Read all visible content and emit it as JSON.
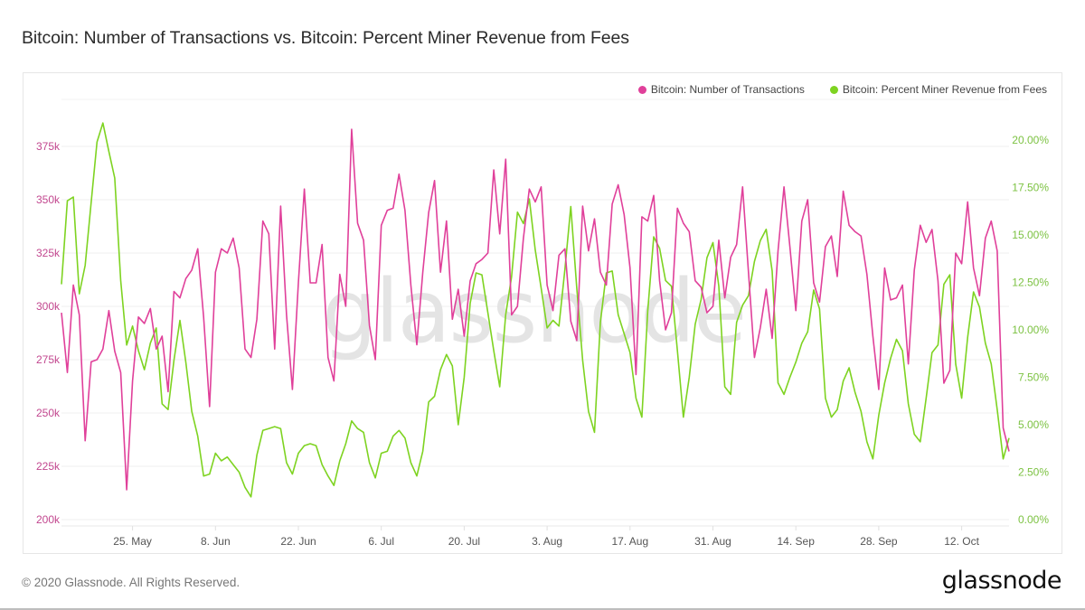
{
  "header": {
    "title": "Bitcoin: Number of Transactions vs. Bitcoin: Percent Miner Revenue from Fees"
  },
  "footer": {
    "copyright": "© 2020 Glassnode. All Rights Reserved.",
    "logo": "glassnode"
  },
  "watermark": "glassnode",
  "chart_data": {
    "type": "line",
    "title": "Bitcoin: Number of Transactions vs. Bitcoin: Percent Miner Revenue from Fees",
    "xlabel": "",
    "legend_position": "top-right",
    "grid": true,
    "x_start": "2020-05-13",
    "x_ticks": [
      "25. May",
      "8. Jun",
      "22. Jun",
      "6. Jul",
      "20. Jul",
      "3. Aug",
      "17. Aug",
      "31. Aug",
      "14. Sep",
      "28. Sep",
      "12. Oct"
    ],
    "x_tick_days": [
      12,
      26,
      40,
      54,
      68,
      82,
      96,
      110,
      124,
      138,
      152
    ],
    "y_left": {
      "label": "Number of Transactions",
      "range": [
        200000,
        390000
      ],
      "ticks": [
        200000,
        225000,
        250000,
        275000,
        300000,
        325000,
        350000,
        375000
      ],
      "tick_labels": [
        "200k",
        "225k",
        "250k",
        "275k",
        "300k",
        "325k",
        "350k",
        "375k"
      ],
      "color": "#c2478f"
    },
    "y_right": {
      "label": "Percent Miner Revenue from Fees",
      "range": [
        0,
        21
      ],
      "ticks": [
        0,
        2.5,
        5,
        7.5,
        10,
        12.5,
        15,
        17.5,
        20
      ],
      "tick_labels": [
        "0.00%",
        "2.50%",
        "5.00%",
        "7.50%",
        "10.00%",
        "12.50%",
        "15.00%",
        "17.50%",
        "20.00%"
      ],
      "color": "#7cc242"
    },
    "series": [
      {
        "name": "Bitcoin: Number of Transactions",
        "axis": "left",
        "color": "#e0409a",
        "values": [
          297000,
          269000,
          310000,
          296000,
          237000,
          274000,
          275000,
          280000,
          298000,
          279000,
          269000,
          214000,
          265000,
          295000,
          292000,
          299000,
          280000,
          286000,
          260000,
          307000,
          304000,
          313000,
          317000,
          327000,
          295000,
          253000,
          316000,
          327000,
          325000,
          332000,
          318000,
          280000,
          276000,
          294000,
          340000,
          334000,
          280000,
          347000,
          296000,
          261000,
          311000,
          355000,
          311000,
          311000,
          329000,
          276000,
          265000,
          315000,
          300000,
          383000,
          339000,
          331000,
          291000,
          275000,
          338000,
          345000,
          346000,
          362000,
          345000,
          310000,
          282000,
          316000,
          344000,
          359000,
          316000,
          340000,
          294000,
          308000,
          286000,
          312000,
          320000,
          322000,
          325000,
          364000,
          334000,
          369000,
          296000,
          300000,
          332000,
          355000,
          349000,
          356000,
          310000,
          298000,
          324000,
          327000,
          293000,
          284000,
          347000,
          326000,
          341000,
          316000,
          310000,
          348000,
          357000,
          343000,
          318000,
          268000,
          342000,
          340000,
          352000,
          312000,
          289000,
          297000,
          346000,
          339000,
          335000,
          312000,
          309000,
          297000,
          300000,
          331000,
          304000,
          323000,
          329000,
          356000,
          316000,
          276000,
          290000,
          308000,
          285000,
          326000,
          356000,
          328000,
          298000,
          340000,
          350000,
          311000,
          302000,
          328000,
          333000,
          314000,
          354000,
          338000,
          335000,
          333000,
          315000,
          286000,
          261000,
          318000,
          303000,
          304000,
          310000,
          273000,
          317000,
          338000,
          330000,
          336000,
          312000,
          264000,
          270000,
          325000,
          320000,
          349000,
          318000,
          305000,
          332000,
          340000,
          326000,
          243000,
          232000
        ]
      },
      {
        "name": "Bitcoin: Percent Miner Revenue from Fees",
        "axis": "right",
        "color": "#7ed321",
        "values": [
          12.4,
          16.8,
          17.0,
          11.9,
          13.4,
          16.7,
          19.9,
          20.9,
          19.4,
          18.0,
          12.6,
          9.2,
          10.2,
          8.9,
          7.9,
          9.3,
          10.1,
          6.1,
          5.8,
          8.4,
          10.5,
          8.3,
          5.7,
          4.4,
          2.3,
          2.4,
          3.5,
          3.1,
          3.3,
          2.9,
          2.5,
          1.7,
          1.2,
          3.4,
          4.7,
          4.8,
          4.9,
          4.8,
          3.0,
          2.4,
          3.5,
          3.9,
          4.0,
          3.9,
          2.9,
          2.3,
          1.8,
          3.1,
          4.0,
          5.2,
          4.8,
          4.6,
          3.0,
          2.2,
          3.5,
          3.6,
          4.4,
          4.7,
          4.3,
          3.0,
          2.3,
          3.6,
          6.2,
          6.5,
          7.9,
          8.7,
          8.1,
          5.0,
          7.5,
          11.4,
          13.0,
          12.9,
          10.9,
          8.9,
          7.0,
          10.8,
          12.8,
          16.2,
          15.6,
          16.9,
          14.2,
          12.2,
          10.1,
          10.5,
          10.2,
          13.2,
          16.5,
          12.2,
          8.4,
          5.7,
          4.6,
          10.4,
          13.0,
          13.1,
          10.8,
          9.8,
          8.8,
          6.4,
          5.4,
          11.0,
          14.9,
          14.3,
          12.6,
          12.3,
          8.9,
          5.4,
          7.5,
          10.3,
          11.6,
          13.8,
          14.6,
          12.3,
          7.0,
          6.6,
          10.4,
          11.3,
          11.8,
          13.6,
          14.7,
          15.3,
          13.1,
          7.2,
          6.6,
          7.5,
          8.3,
          9.3,
          9.9,
          12.1,
          11.1,
          6.4,
          5.4,
          5.8,
          7.3,
          8.0,
          6.7,
          5.7,
          4.1,
          3.2,
          5.5,
          7.2,
          8.5,
          9.5,
          8.9,
          6.1,
          4.5,
          4.1,
          6.4,
          8.8,
          9.2,
          12.4,
          12.9,
          8.2,
          6.4,
          9.6,
          12.0,
          11.2,
          9.3,
          8.2,
          5.8,
          3.2,
          4.3
        ]
      }
    ]
  },
  "legend": {
    "items": [
      {
        "label": "Bitcoin: Number of Transactions",
        "color": "#e0409a"
      },
      {
        "label": "Bitcoin: Percent Miner Revenue from Fees",
        "color": "#7ed321"
      }
    ]
  }
}
